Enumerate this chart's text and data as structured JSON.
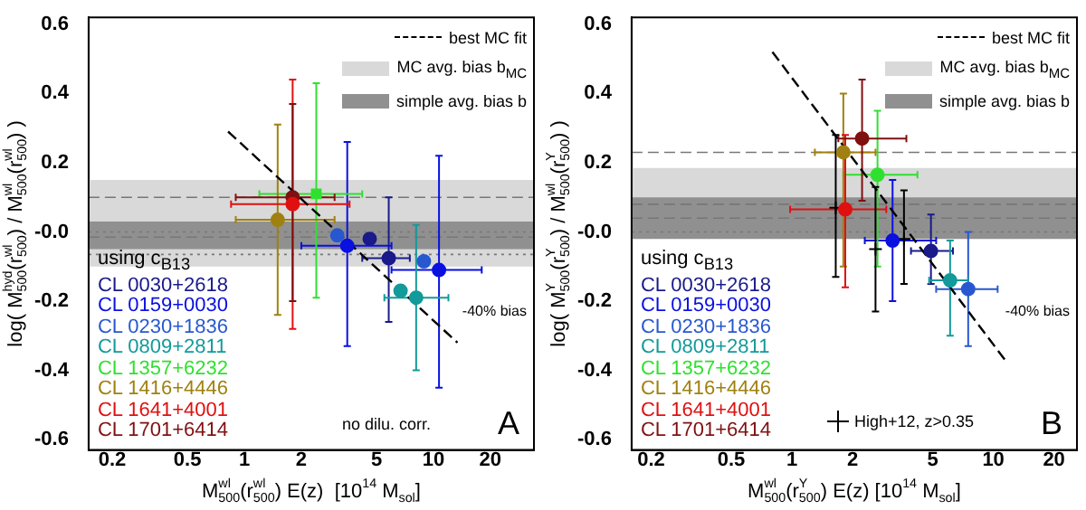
{
  "chart_data": [
    {
      "type": "scatter",
      "log": "x",
      "xlabel": "M$^{wl}$$_{500}$(r$^{wl}$$_{500}$) E(z)  [10$^{14}$ M$_{sol}$]",
      "ylabel": "log( M$^{hyd}$$_{500}$(r$^{wl}$$_{500}$) / M$^{wl}$$_{500}$(r$^{wl}$$_{500}$) )",
      "legend": "top right",
      "legend_title": "using c$_{B13}$",
      "xlim": [
        0.15,
        34
      ],
      "ylim": [
        -0.63,
        0.62
      ],
      "xticks": [
        0.2,
        0.5,
        1,
        2,
        5,
        10,
        20
      ],
      "yticks": [
        0.6,
        0.4,
        0.2,
        {
          "value": 0,
          "label": "-0.0"
        },
        -0.2,
        -0.4,
        -0.6
      ],
      "grid": false,
      "marker": "circle",
      "series": [
        {
          "name": "CL 0030+2618",
          "color": "#1a1a8a",
          "x": [
            4.6,
            5.8
          ],
          "values": [
            -0.02,
            -0.076
          ],
          "errors": [
            null,
            [
              -0.26,
              0.1
            ]
          ],
          "xerrors": [
            null,
            [
              4.2,
              7.5
            ]
          ]
        },
        {
          "name": "CL 0159+0030",
          "color": "#0a10e0",
          "x": [
            3.5,
            10.7
          ],
          "values": [
            -0.04,
            -0.11
          ],
          "errors": [
            [
              -0.33,
              0.26
            ],
            [
              -0.45,
              0.22
            ]
          ],
          "xerrors": [
            [
              2.0,
              6.0
            ],
            [
              6.0,
              18
            ]
          ]
        },
        {
          "name": "CL 0230+1836",
          "color": "#2858d0",
          "x": [
            3.1,
            8.9
          ],
          "values": [
            -0.01,
            -0.085
          ]
        },
        {
          "name": "CL 0809+2811",
          "color": "#139a9a",
          "x": [
            6.7,
            8.1
          ],
          "values": [
            -0.17,
            -0.19
          ],
          "errors": [
            null,
            [
              -0.4,
              0.02
            ]
          ],
          "xerrors": [
            null,
            [
              5.5,
              12
            ]
          ]
        },
        {
          "name": "CL 1357+6232",
          "color": "#30e030",
          "marker": "square",
          "x": [
            2.4
          ],
          "values": [
            0.11
          ],
          "errors": [
            [
              -0.19,
              0.43
            ]
          ],
          "xerrors": [
            [
              1.2,
              4.2
            ]
          ]
        },
        {
          "name": "CL 1416+4446",
          "color": "#a08010",
          "x": [
            1.5
          ],
          "values": [
            0.035
          ],
          "errors": [
            [
              -0.24,
              0.31
            ]
          ],
          "xerrors": [
            [
              0.9,
              3.0
            ]
          ]
        },
        {
          "name": "CL 1641+4001",
          "color": "#e01010",
          "x": [
            1.8
          ],
          "values": [
            0.08
          ],
          "errors": [
            [
              -0.28,
              0.44
            ]
          ],
          "xerrors": [
            [
              0.85,
              3.6
            ]
          ]
        },
        {
          "name": "CL 1701+6414",
          "color": "#801010",
          "x": [
            1.8
          ],
          "values": [
            0.1
          ],
          "errors": [
            [
              -0.2,
              0.37
            ]
          ],
          "xerrors": [
            [
              0.9,
              3.0
            ]
          ]
        },
        {
          "name": "best MC fit",
          "type": "line",
          "color": "#000000",
          "line_style": "dashed",
          "marker": "none",
          "x": [
            0.82,
            13.4
          ],
          "values": [
            0.29,
            -0.32
          ]
        }
      ],
      "bands": [
        {
          "axis": "y",
          "from": -0.1,
          "to": 0.15,
          "label": "MC avg. bias b$_{MC}$",
          "color": "#d9d9d9"
        },
        {
          "axis": "y",
          "from": -0.05,
          "to": 0.03,
          "label": "simple avg. bias b",
          "color": "#909090"
        }
      ],
      "ref_lines": [
        {
          "axis": "y",
          "value": 0.1,
          "line_style": "dashed"
        },
        {
          "axis": "y",
          "value": 0.0,
          "line_style": "dotted"
        },
        {
          "axis": "y",
          "value": -0.015,
          "line_style": "dashed"
        },
        {
          "axis": "y",
          "value": -0.065,
          "line_style": "dotted"
        }
      ],
      "annotations": [
        "-40% bias",
        "no dilu. corr.",
        "A"
      ]
    },
    {
      "type": "scatter",
      "log": "x",
      "xlabel": "M$^{wl}$$_{500}$(r$^{Y}$$_{500}$) E(z) [10$^{14}$ M$_{sol}$]",
      "ylabel": "log( M$^{Y}$$_{500}$(r$^{Y}$$_{500}$) / M$^{wl}$$_{500}$(r$^{Y}$$_{500}$) )",
      "legend": "top right",
      "legend_title": "using c$_{B13}$",
      "xlim": [
        0.16,
        26
      ],
      "ylim": [
        -0.63,
        0.62
      ],
      "xticks": [
        0.2,
        0.5,
        1,
        2,
        5,
        10,
        20
      ],
      "yticks": [
        0.6,
        0.4,
        0.2,
        {
          "value": 0,
          "label": "-0.0"
        },
        -0.2,
        -0.4,
        -0.6
      ],
      "grid": false,
      "marker": "circle",
      "series": [
        {
          "name": "CL 0030+2618",
          "color": "#1a1a8a",
          "x": [
            4.9
          ],
          "values": [
            -0.055
          ],
          "errors": [
            [
              -0.15,
              0.05
            ]
          ],
          "xerrors": [
            [
              3.9,
              6.3
            ]
          ]
        },
        {
          "name": "CL 0159+0030",
          "color": "#0a10e0",
          "x": [
            3.16
          ],
          "values": [
            -0.025
          ],
          "errors": [
            [
              -0.2,
              0.15
            ]
          ],
          "xerrors": [
            [
              2.3,
              5.2
            ]
          ]
        },
        {
          "name": "CL 0230+1836",
          "color": "#2858d0",
          "x": [
            7.5
          ],
          "values": [
            -0.165
          ],
          "errors": [
            [
              -0.33,
              0.0
            ]
          ],
          "xerrors": [
            [
              5.2,
              10.5
            ]
          ]
        },
        {
          "name": "CL 0809+2811",
          "color": "#139a9a",
          "x": [
            6.1
          ],
          "values": [
            -0.14
          ],
          "errors": [
            [
              -0.3,
              -0.025
            ]
          ],
          "xerrors": [
            [
              4.8,
              7.5
            ]
          ]
        },
        {
          "name": "CL 1357+6232",
          "color": "#30e030",
          "x": [
            2.66
          ],
          "values": [
            0.165
          ],
          "errors": [
            [
              -0.1,
              0.35
            ]
          ],
          "xerrors": [
            [
              1.8,
              4.2
            ]
          ]
        },
        {
          "name": "CL 1416+4446",
          "color": "#a08010",
          "x": [
            1.8
          ],
          "values": [
            0.23
          ],
          "errors": [
            [
              -0.1,
              0.4
            ]
          ],
          "xerrors": [
            [
              1.3,
              2.6
            ]
          ]
        },
        {
          "name": "CL 1641+4001",
          "color": "#e01010",
          "x": [
            1.84
          ],
          "values": [
            0.065
          ],
          "errors": [
            [
              -0.16,
              0.28
            ]
          ],
          "xerrors": [
            [
              0.98,
              2.94
            ]
          ]
        },
        {
          "name": "CL 1701+6414",
          "color": "#801010",
          "x": [
            2.23
          ],
          "values": [
            0.27
          ],
          "errors": [
            [
              0.09,
              0.44
            ]
          ],
          "xerrors": [
            [
              1.7,
              3.7
            ]
          ]
        },
        {
          "name": "High+12, z>0.35",
          "color": "#000000",
          "marker": "cross",
          "x": [
            1.65,
            2.6,
            3.6
          ],
          "values": [
            0.07,
            -0.05,
            -0.02
          ],
          "errors": [
            [
              -0.13,
              0.28
            ],
            [
              -0.23,
              0.13
            ],
            [
              -0.15,
              0.12
            ]
          ]
        },
        {
          "name": "best MC fit",
          "type": "line",
          "color": "#000000",
          "line_style": "dashed",
          "marker": "none",
          "x": [
            0.8,
            11.6
          ],
          "values": [
            0.52,
            -0.375
          ]
        }
      ],
      "bands": [
        {
          "axis": "y",
          "from": 0.02,
          "to": 0.185,
          "label": "MC avg. bias b$_{MC}$",
          "color": "#d9d9d9"
        },
        {
          "axis": "y",
          "from": -0.02,
          "to": 0.1,
          "label": "simple avg. bias b",
          "color": "#909090"
        }
      ],
      "ref_lines": [
        {
          "axis": "y",
          "value": 0.23,
          "line_style": "dashed"
        },
        {
          "axis": "y",
          "value": 0.08,
          "line_style": "dashed"
        },
        {
          "axis": "y",
          "value": 0.04,
          "line_style": "dashed"
        },
        {
          "axis": "y",
          "value": 0.0,
          "line_style": "dotted"
        }
      ],
      "annotations": [
        "-40% bias",
        "B"
      ]
    }
  ]
}
